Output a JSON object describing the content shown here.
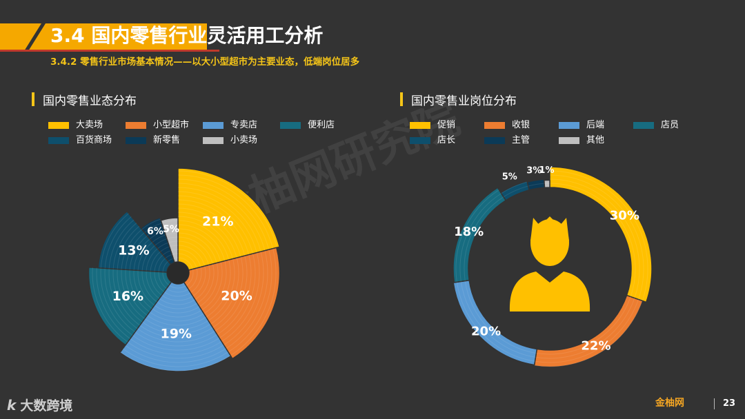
{
  "header": {
    "title": "3.4 国内零售行业灵活用工分析",
    "subtitle": "3.4.2 零售行业市场基本情况——以大小型超市为主要业态，低端岗位居多"
  },
  "watermark": "金柚网研究院",
  "footer": {
    "logo_text": "大数跨境",
    "logo_mark": "k",
    "brand": "金柚网",
    "page_number": "23"
  },
  "colors": {
    "yellow": "#FFC000",
    "orange": "#ED7D31",
    "blue": "#5B9BD5",
    "teal": "#176C80",
    "dark_teal": "#0E4F6C",
    "navy": "#0B3A57",
    "gray": "#BFBFBF",
    "accent": "#f5c518"
  },
  "chart_data": [
    {
      "type": "pie",
      "title": "国内零售业态分布",
      "legend_position": "top",
      "slices": [
        {
          "name": "大卖场",
          "value": 21,
          "label": "21%",
          "color": "#FFC000"
        },
        {
          "name": "小型超市",
          "value": 20,
          "label": "20%",
          "color": "#ED7D31"
        },
        {
          "name": "专卖店",
          "value": 19,
          "label": "19%",
          "color": "#5B9BD5"
        },
        {
          "name": "便利店",
          "value": 16,
          "label": "16%",
          "color": "#176C80"
        },
        {
          "name": "百货商场",
          "value": 13,
          "label": "13%",
          "color": "#0E4F6C"
        },
        {
          "name": "新零售",
          "value": 6,
          "label": "6%",
          "color": "#0B3A57"
        },
        {
          "name": "小卖场",
          "value": 5,
          "label": "5%",
          "color": "#BFBFBF"
        }
      ]
    },
    {
      "type": "pie",
      "subtype": "donut",
      "title": "国内零售业岗位分布",
      "legend_position": "top",
      "center_icon": "person-icon",
      "slices": [
        {
          "name": "促销",
          "value": 30,
          "label": "30%",
          "color": "#FFC000"
        },
        {
          "name": "收银",
          "value": 22,
          "label": "22%",
          "color": "#ED7D31"
        },
        {
          "name": "后端",
          "value": 20,
          "label": "20%",
          "color": "#5B9BD5"
        },
        {
          "name": "店员",
          "value": 18,
          "label": "18%",
          "color": "#176C80"
        },
        {
          "name": "店长",
          "value": 5,
          "label": "5%",
          "color": "#0E4F6C"
        },
        {
          "name": "主管",
          "value": 3,
          "label": "3%",
          "color": "#0B3A57"
        },
        {
          "name": "其他",
          "value": 1,
          "label": "1%",
          "color": "#BFBFBF"
        }
      ]
    }
  ]
}
